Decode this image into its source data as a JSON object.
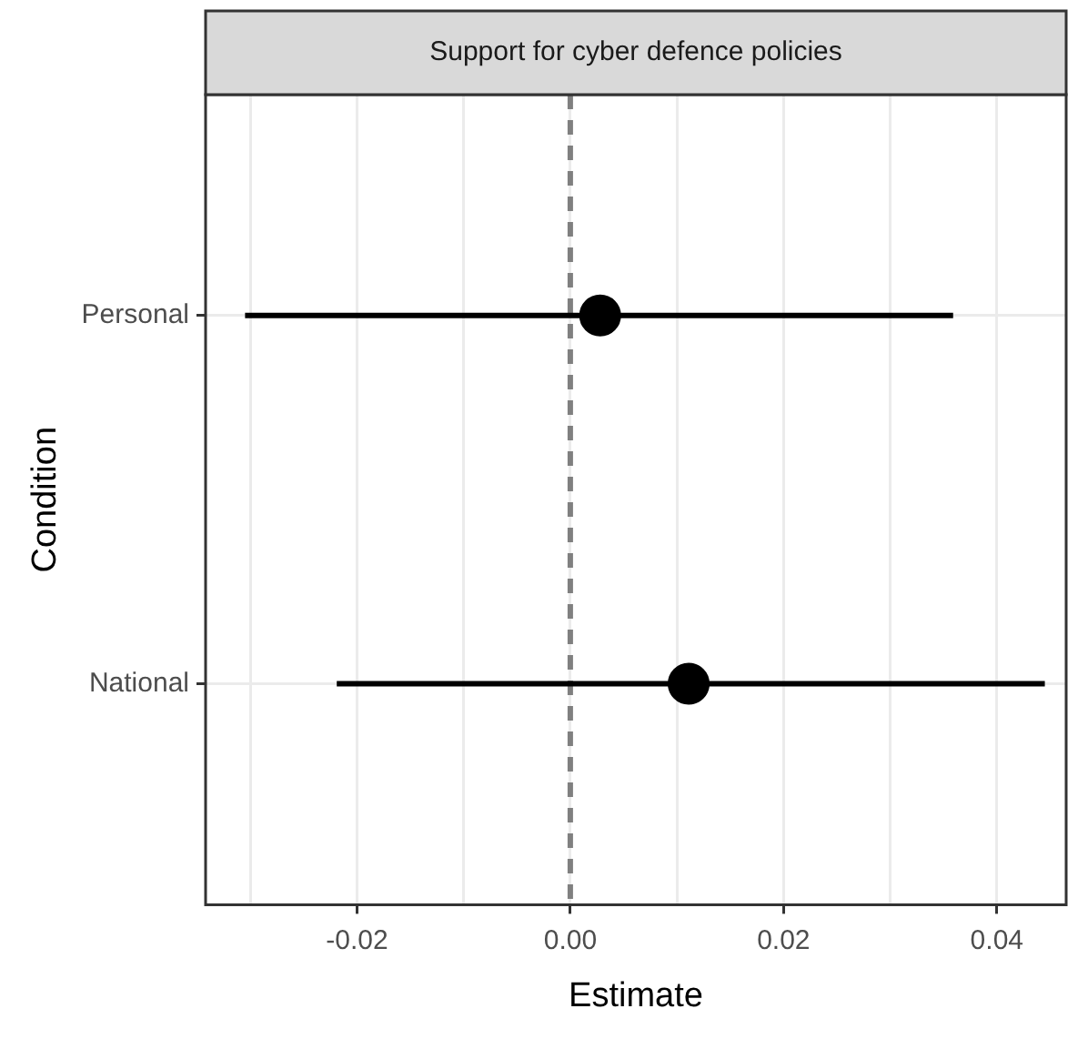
{
  "chart_data": {
    "type": "scatter",
    "title": "Support for cyber defence policies",
    "xlabel": "Estimate",
    "ylabel": "Condition",
    "orientation": "horizontal",
    "categories": [
      "Personal",
      "National"
    ],
    "series": [
      {
        "color": "#000000",
        "values": [
          0.0028,
          0.0111
        ],
        "errors": [
          [
            -0.0305,
            0.0359
          ],
          [
            -0.0219,
            0.0445
          ]
        ]
      }
    ],
    "xlim": [
      -0.0342,
      0.0465
    ],
    "xticks": [
      {
        "value": -0.03,
        "label": null
      },
      {
        "value": -0.02,
        "label": "-0.02"
      },
      {
        "value": -0.01,
        "label": null
      },
      {
        "value": 0,
        "label": "0.00"
      },
      {
        "value": 0.01,
        "label": null
      },
      {
        "value": 0.02,
        "label": "0.02"
      },
      {
        "value": 0.03,
        "label": null
      },
      {
        "value": 0.04,
        "label": "0.04"
      }
    ],
    "ref_lines": [
      {
        "axis": "x",
        "value": 0,
        "color": "#808080",
        "line_style": "dashed"
      }
    ],
    "grid": true,
    "legend": false,
    "marker": "circle"
  }
}
